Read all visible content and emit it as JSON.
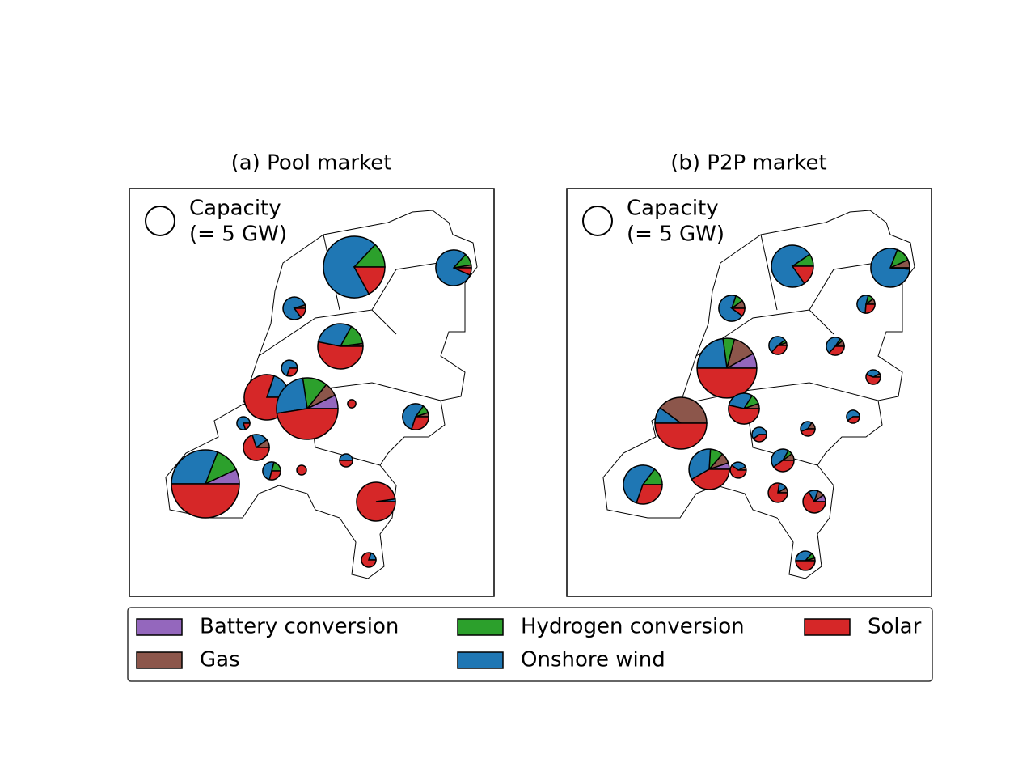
{
  "technologies": [
    {
      "name": "Battery conversion",
      "color": "#9467bd"
    },
    {
      "name": "Gas",
      "color": "#8c564b"
    },
    {
      "name": "Hydrogen conversion",
      "color": "#2ca02c"
    },
    {
      "name": "Onshore wind",
      "color": "#1f77b4"
    },
    {
      "name": "Solar",
      "color": "#d62728"
    }
  ],
  "legend_size": {
    "title": "Capacity",
    "value": 5,
    "label": "(= 5 GW)"
  },
  "panels": [
    {
      "title": "(a) Pool market",
      "pies": [
        [
          0,
          0,
          2.9,
          15.6,
          3.8
        ],
        [
          0,
          0.2,
          0.8,
          6,
          0.5
        ],
        [
          0,
          0.15,
          0,
          2.4,
          0.45
        ],
        [
          0,
          0.25,
          1.8,
          3.6,
          6.4
        ],
        [
          0,
          0,
          0,
          1.05,
          0.45
        ],
        [
          0,
          0,
          0,
          2.4,
          9.7
        ],
        [
          1.6,
          1.6,
          2.9,
          5.6,
          10.6
        ],
        [
          0,
          0.2,
          0.4,
          2.2,
          1.2
        ],
        [
          0,
          0,
          0,
          0.8,
          0.2
        ],
        [
          0,
          0.4,
          0,
          0.8,
          2.8
        ],
        [
          1.9,
          0,
          3.3,
          8.4,
          13.6
        ],
        [
          0,
          0,
          0.4,
          0.95,
          0.55
        ],
        [
          0,
          0,
          0,
          0.5,
          0.5
        ],
        [
          0,
          0,
          0,
          0.2,
          8.7
        ],
        [
          0,
          0,
          0,
          0.25,
          1
        ],
        [
          0,
          0,
          0,
          0,
          0.55
        ],
        [
          0,
          0,
          0,
          0,
          0.4
        ]
      ]
    },
    {
      "title": "(b) P2P market",
      "pies": [
        [
          0,
          0,
          1,
          7.8,
          1.6
        ],
        [
          0,
          0.6,
          1.1,
          7.1,
          0.1
        ],
        [
          0,
          0.4,
          0.4,
          2.8,
          0.4
        ],
        [
          0,
          0.2,
          0.2,
          1,
          0.5
        ],
        [
          1.7,
          2.7,
          1.3,
          4.8,
          10.5
        ],
        [
          0,
          6.3,
          0,
          1.6,
          7.9
        ],
        [
          0,
          0.3,
          0.6,
          1.7,
          3
        ],
        [
          0,
          0.1,
          0.1,
          1,
          0.7
        ],
        [
          0,
          0.2,
          0.1,
          0.9,
          0.7
        ],
        [
          0,
          0.1,
          0,
          0.45,
          0.7
        ],
        [
          0,
          0,
          1.3,
          4.9,
          2.7
        ],
        [
          0.5,
          0.8,
          1,
          3.3,
          4
        ],
        [
          0,
          0.3,
          0.2,
          1.3,
          1.2
        ],
        [
          0,
          0.2,
          0,
          0.3,
          1.7
        ],
        [
          0.3,
          0.3,
          0,
          0.4,
          2
        ],
        [
          0,
          0.1,
          0.2,
          0.8,
          1.1
        ],
        [
          0,
          0,
          0,
          0.75,
          0.5
        ],
        [
          0,
          0.2,
          0,
          0.5,
          0.55
        ],
        [
          0,
          0.1,
          0,
          0.5,
          0.9
        ],
        [
          0,
          0,
          0,
          0.6,
          0.4
        ]
      ]
    }
  ]
}
